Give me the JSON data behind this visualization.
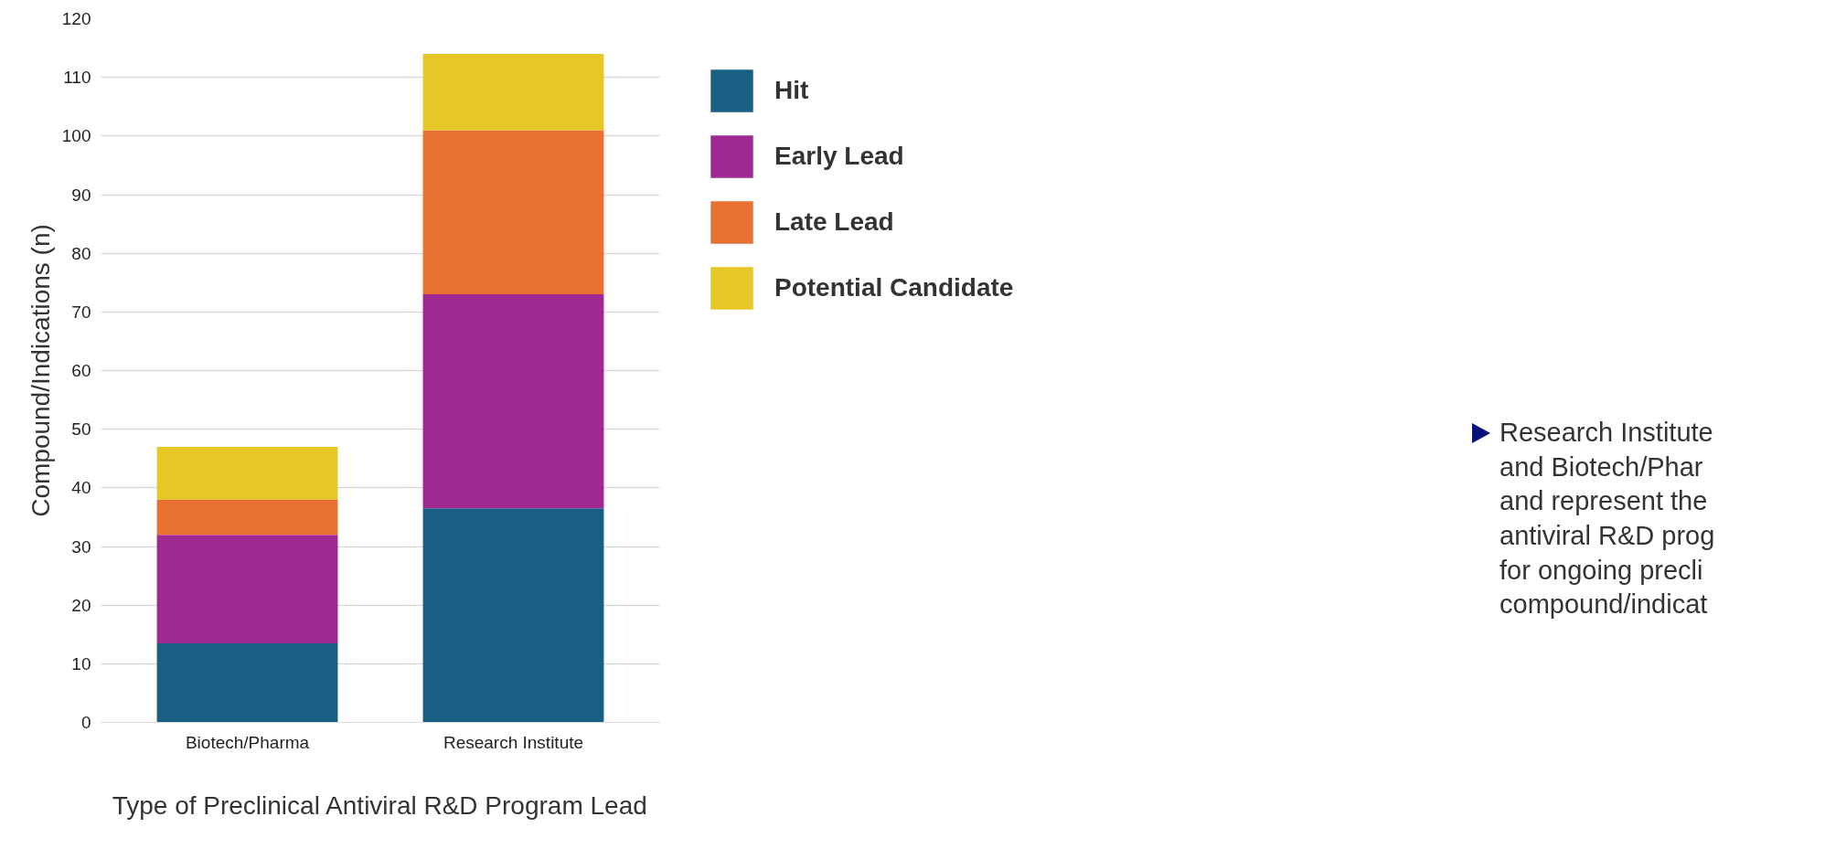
{
  "chart_data": {
    "type": "bar",
    "stacked": true,
    "xlabel": "Type of Preclinical Antiviral R&D Program Lead",
    "ylabel": "Compound/Indications (n)",
    "categories": [
      "Biotech/Pharma",
      "Research Institute"
    ],
    "series": [
      {
        "name": "Hit",
        "color": "#176083",
        "values": [
          13.5,
          36.5
        ]
      },
      {
        "name": "Early Lead",
        "color": "#9e2a91",
        "values": [
          18.5,
          36.5
        ]
      },
      {
        "name": "Late Lead",
        "color": "#e87033",
        "values": [
          6,
          28
        ]
      },
      {
        "name": "Potential Candidate",
        "color": "#e6c726",
        "values": [
          9,
          13
        ]
      }
    ],
    "ylim": [
      0,
      120
    ],
    "yticks": [
      0,
      10,
      20,
      30,
      40,
      50,
      60,
      70,
      80,
      90,
      100,
      110,
      120
    ],
    "grid": "y",
    "legend": "top right",
    "annotations": [
      "Research Institute\nand Biotech/Phar\nand represent the\nantiviral R&D prog\nfor ongoing precli\ncompound/indicat"
    ]
  }
}
